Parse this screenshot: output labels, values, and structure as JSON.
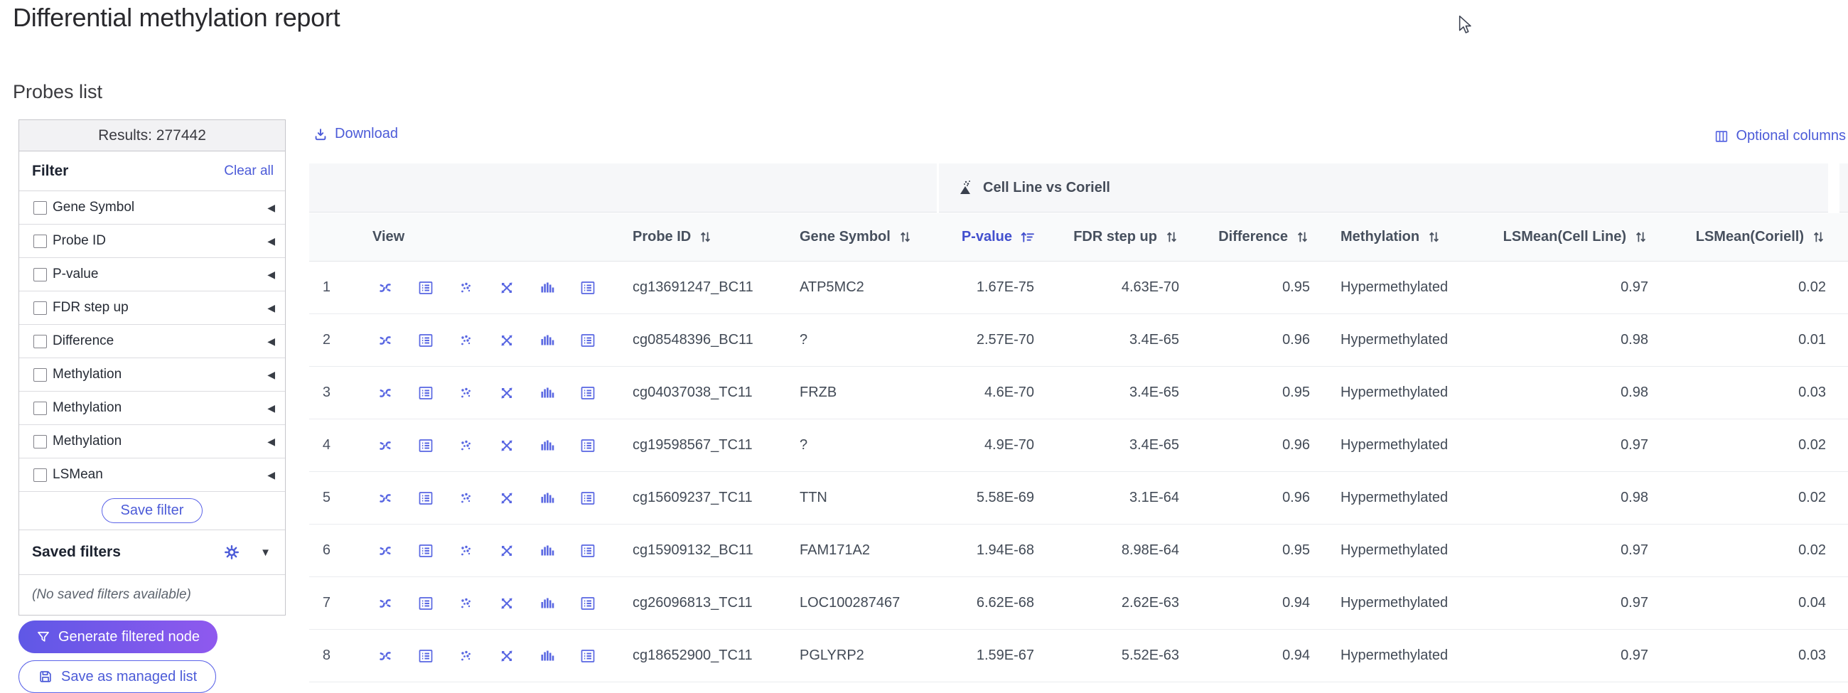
{
  "page": {
    "title": "Differential methylation report",
    "section_title": "Probes list"
  },
  "sidebar": {
    "results_label": "Results: 277442",
    "filter_title": "Filter",
    "clear_all_label": "Clear all",
    "filters": [
      {
        "label": "Gene Symbol"
      },
      {
        "label": "Probe ID"
      },
      {
        "label": "P-value"
      },
      {
        "label": "FDR step up"
      },
      {
        "label": "Difference"
      },
      {
        "label": "Methylation"
      },
      {
        "label": "Methylation"
      },
      {
        "label": "Methylation"
      },
      {
        "label": "LSMean"
      }
    ],
    "save_filter_label": "Save filter",
    "saved_filters_title": "Saved filters",
    "no_saved_filters": "(No saved filters available)",
    "generate_button_label": "Generate filtered node",
    "save_managed_list_label": "Save as managed list"
  },
  "toolbar": {
    "download_label": "Download",
    "optional_columns_label": "Optional columns"
  },
  "table": {
    "group_header": "Cell Line vs Coriell",
    "columns": [
      "View",
      "Probe ID",
      "Gene Symbol",
      "P-value",
      "FDR step up",
      "Difference",
      "Methylation",
      "LSMean(Cell Line)",
      "LSMean(Coriell)"
    ],
    "sorted_column": "P-value",
    "sort_direction": "ascending",
    "view_icon_names": [
      "chromosome-view-icon",
      "details-table-icon",
      "dot-plot-icon",
      "crossed-arrows-icon",
      "bar-chart-icon",
      "report-list-icon"
    ],
    "rows": [
      {
        "num": "1",
        "probe_id": "cg13691247_BC11",
        "gene": "ATP5MC2",
        "pvalue": "1.67E-75",
        "fdr": "4.63E-70",
        "difference": "0.95",
        "methylation": "Hypermethylated",
        "lsmean_cell": "0.97",
        "lsmean_coriell": "0.02"
      },
      {
        "num": "2",
        "probe_id": "cg08548396_BC11",
        "gene": "?",
        "pvalue": "2.57E-70",
        "fdr": "3.4E-65",
        "difference": "0.96",
        "methylation": "Hypermethylated",
        "lsmean_cell": "0.98",
        "lsmean_coriell": "0.01"
      },
      {
        "num": "3",
        "probe_id": "cg04037038_TC11",
        "gene": "FRZB",
        "pvalue": "4.6E-70",
        "fdr": "3.4E-65",
        "difference": "0.95",
        "methylation": "Hypermethylated",
        "lsmean_cell": "0.98",
        "lsmean_coriell": "0.03"
      },
      {
        "num": "4",
        "probe_id": "cg19598567_TC11",
        "gene": "?",
        "pvalue": "4.9E-70",
        "fdr": "3.4E-65",
        "difference": "0.96",
        "methylation": "Hypermethylated",
        "lsmean_cell": "0.97",
        "lsmean_coriell": "0.02"
      },
      {
        "num": "5",
        "probe_id": "cg15609237_TC11",
        "gene": "TTN",
        "pvalue": "5.58E-69",
        "fdr": "3.1E-64",
        "difference": "0.96",
        "methylation": "Hypermethylated",
        "lsmean_cell": "0.98",
        "lsmean_coriell": "0.02"
      },
      {
        "num": "6",
        "probe_id": "cg15909132_BC11",
        "gene": "FAM171A2",
        "pvalue": "1.94E-68",
        "fdr": "8.98E-64",
        "difference": "0.95",
        "methylation": "Hypermethylated",
        "lsmean_cell": "0.97",
        "lsmean_coriell": "0.02"
      },
      {
        "num": "7",
        "probe_id": "cg26096813_TC11",
        "gene": "LOC100287467",
        "pvalue": "6.62E-68",
        "fdr": "2.62E-63",
        "difference": "0.94",
        "methylation": "Hypermethylated",
        "lsmean_cell": "0.97",
        "lsmean_coriell": "0.04"
      },
      {
        "num": "8",
        "probe_id": "cg18652900_TC11",
        "gene": "PGLYRP2",
        "pvalue": "1.59E-67",
        "fdr": "5.52E-63",
        "difference": "0.94",
        "methylation": "Hypermethylated",
        "lsmean_cell": "0.97",
        "lsmean_coriell": "0.03"
      }
    ]
  },
  "colors": {
    "accent_link": "#4c5bd8",
    "icon_blue": "#5866e2",
    "active_sort": "#4350ce",
    "header_text": "#47505e",
    "body_text": "#424a56",
    "generate_gradient_start": "#5f58e6",
    "generate_gradient_end": "#8f59ee",
    "group_header_bg": "#f6f7f9"
  }
}
